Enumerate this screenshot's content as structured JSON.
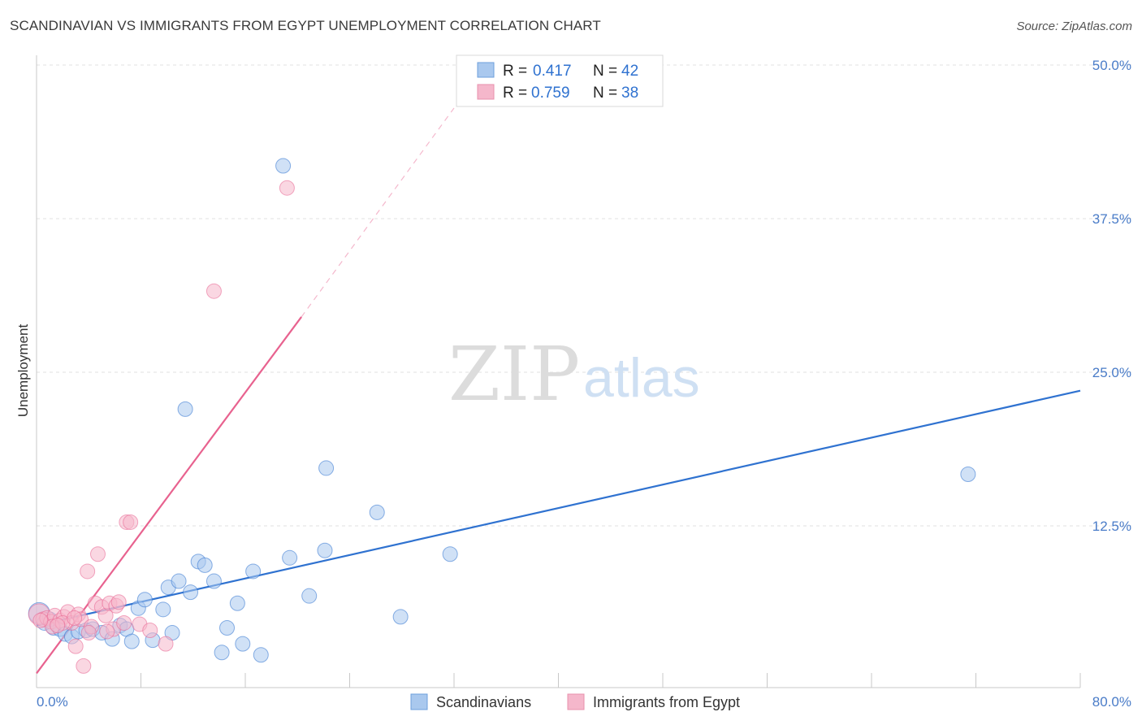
{
  "title": "SCANDINAVIAN VS IMMIGRANTS FROM EGYPT UNEMPLOYMENT CORRELATION CHART",
  "source": "Source: ZipAtlas.com",
  "watermark": {
    "zip": "ZIP",
    "atlas": "atlas"
  },
  "colors": {
    "blue": "#2f72d0",
    "blue_fill": "#a9c8ee",
    "pink": "#e8628f",
    "pink_fill": "#f5b7cb",
    "grid": "#e2e2e2",
    "tick": "#4a7cc8"
  },
  "chart_data": {
    "type": "scatter",
    "title": "SCANDINAVIAN VS IMMIGRANTS FROM EGYPT UNEMPLOYMENT CORRELATION CHART",
    "xlabel": "",
    "ylabel": "Unemployment",
    "xlim": [
      0,
      80
    ],
    "ylim": [
      0,
      50
    ],
    "x_tick_labels": [
      "0.0%",
      "80.0%"
    ],
    "y_ticks": [
      12.5,
      25,
      37.5,
      50
    ],
    "y_tick_labels": [
      "12.5%",
      "25.0%",
      "37.5%",
      "50.0%"
    ],
    "grid": true,
    "legend": {
      "position": "top-center",
      "entries": [
        {
          "r_label": "R = ",
          "r_value": "0.417",
          "n_label": "N = ",
          "n_value": "42"
        },
        {
          "r_label": "R = ",
          "r_value": "0.759",
          "n_label": "N = ",
          "n_value": "38"
        }
      ]
    },
    "series": [
      {
        "name": "Scandinavians",
        "color": "#2f72d0",
        "fill": "#a9c8ee",
        "trend": {
          "x0": 0,
          "y0": 4.4,
          "x1": 80,
          "y1": 23.5,
          "dashed_to": null
        },
        "points": [
          [
            0.2,
            5.4
          ],
          [
            0.6,
            4.6
          ],
          [
            1.0,
            4.9
          ],
          [
            1.3,
            4.2
          ],
          [
            1.8,
            4.1
          ],
          [
            2.2,
            3.7
          ],
          [
            2.7,
            3.5
          ],
          [
            3.2,
            3.9
          ],
          [
            3.8,
            4.0
          ],
          [
            4.3,
            4.1
          ],
          [
            5.0,
            3.8
          ],
          [
            5.8,
            3.3
          ],
          [
            6.4,
            4.4
          ],
          [
            6.9,
            4.1
          ],
          [
            7.3,
            3.1
          ],
          [
            7.8,
            5.8
          ],
          [
            8.3,
            6.5
          ],
          [
            8.9,
            3.2
          ],
          [
            9.7,
            5.7
          ],
          [
            10.1,
            7.5
          ],
          [
            10.4,
            3.8
          ],
          [
            10.9,
            8.0
          ],
          [
            11.4,
            22.0
          ],
          [
            11.8,
            7.1
          ],
          [
            12.4,
            9.6
          ],
          [
            12.9,
            9.3
          ],
          [
            13.6,
            8.0
          ],
          [
            14.2,
            2.2
          ],
          [
            14.6,
            4.2
          ],
          [
            15.4,
            6.2
          ],
          [
            15.8,
            2.9
          ],
          [
            16.6,
            8.8
          ],
          [
            17.2,
            2.0
          ],
          [
            18.9,
            41.8
          ],
          [
            19.4,
            9.9
          ],
          [
            20.9,
            6.8
          ],
          [
            22.1,
            10.5
          ],
          [
            22.2,
            17.2
          ],
          [
            26.1,
            13.6
          ],
          [
            27.9,
            5.1
          ],
          [
            31.7,
            10.2
          ],
          [
            71.4,
            16.7
          ]
        ]
      },
      {
        "name": "Immigrants from Egypt",
        "color": "#e8628f",
        "fill": "#f5b7cb",
        "trend": {
          "x0": 0,
          "y0": 0.5,
          "x1": 20.3,
          "y1": 29.5,
          "dashed_to": [
            32,
            46.5
          ]
        },
        "points": [
          [
            0.2,
            5.3
          ],
          [
            0.5,
            4.9
          ],
          [
            0.8,
            5.0
          ],
          [
            1.1,
            4.7
          ],
          [
            1.4,
            5.2
          ],
          [
            1.8,
            4.8
          ],
          [
            2.1,
            5.1
          ],
          [
            2.4,
            5.5
          ],
          [
            2.7,
            4.6
          ],
          [
            3.0,
            2.7
          ],
          [
            3.2,
            5.3
          ],
          [
            3.4,
            4.9
          ],
          [
            3.6,
            1.1
          ],
          [
            3.9,
            8.8
          ],
          [
            4.2,
            4.3
          ],
          [
            4.5,
            6.2
          ],
          [
            4.7,
            10.2
          ],
          [
            5.0,
            5.9
          ],
          [
            5.3,
            5.2
          ],
          [
            5.6,
            6.2
          ],
          [
            5.9,
            4.1
          ],
          [
            6.1,
            6.0
          ],
          [
            6.3,
            6.3
          ],
          [
            6.7,
            4.6
          ],
          [
            6.9,
            12.8
          ],
          [
            7.2,
            12.8
          ],
          [
            7.9,
            4.5
          ],
          [
            8.7,
            4.0
          ],
          [
            9.9,
            2.9
          ],
          [
            13.6,
            31.6
          ],
          [
            19.2,
            40.0
          ],
          [
            1.2,
            4.3
          ],
          [
            2.0,
            4.6
          ],
          [
            2.9,
            5.0
          ],
          [
            4.0,
            3.8
          ],
          [
            5.4,
            3.9
          ],
          [
            0.3,
            4.8
          ],
          [
            1.6,
            4.4
          ]
        ]
      }
    ]
  }
}
